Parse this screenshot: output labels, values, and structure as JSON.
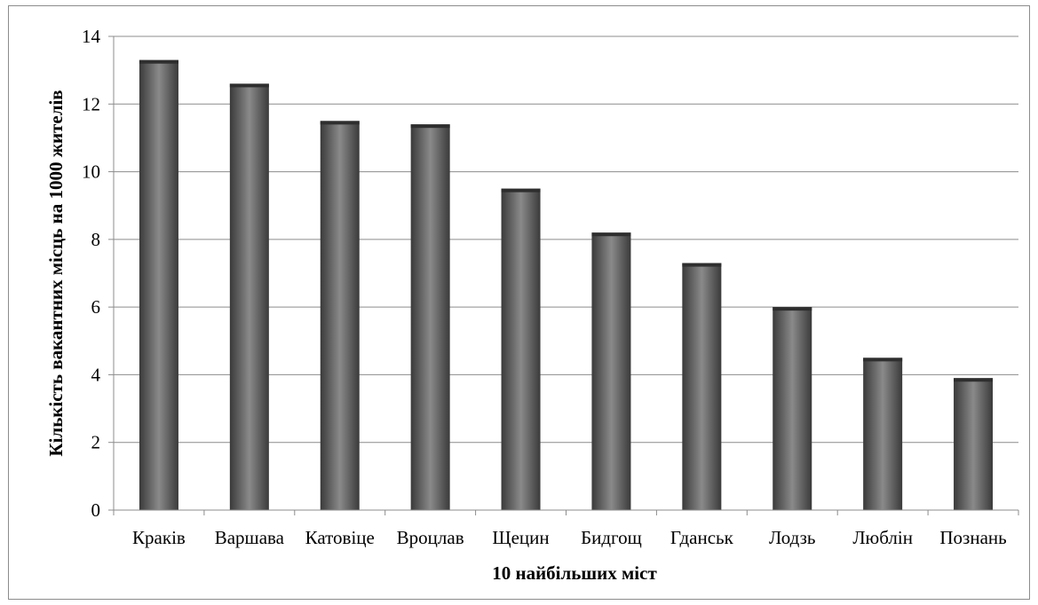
{
  "chart_data": {
    "type": "bar",
    "title": "",
    "xlabel": "10 найбільших міст",
    "ylabel": "Кількість вакантних місць на 1000 жителів",
    "categories": [
      "Краків",
      "Варшава",
      "Катовіце",
      "Вроцлав",
      "Щецин",
      "Бидгощ",
      "Гданськ",
      "Лодзь",
      "Люблін",
      "Познань"
    ],
    "values": [
      13.3,
      12.6,
      11.5,
      11.4,
      9.5,
      8.2,
      7.3,
      6.0,
      4.5,
      3.9
    ],
    "ylim": [
      0,
      14
    ],
    "yticks": [
      "0",
      "2",
      "4",
      "6",
      "8",
      "10",
      "12",
      "14"
    ],
    "grid": true,
    "legend": "none",
    "colors": {
      "bar_dark": "#3a3a3a",
      "bar_light": "#8a8a8a",
      "gridline": "#8c8c8c"
    }
  }
}
